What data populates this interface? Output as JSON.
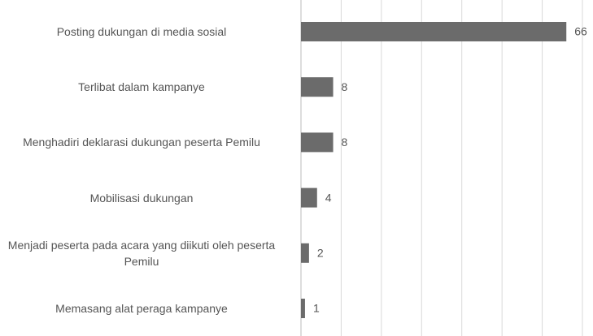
{
  "chart_data": {
    "type": "hbar",
    "categories": [
      "Posting dukungan di media sosial",
      "Terlibat dalam kampanye",
      "Menghadiri deklarasi dukungan peserta Pemilu",
      "Mobilisasi dukungan",
      "Menjadi peserta pada acara yang diikuti oleh peserta Pemilu",
      "Memasang alat peraga kampanye"
    ],
    "values": [
      66,
      8,
      8,
      4,
      2,
      1
    ],
    "color": "#6b6b6b",
    "xlim": [
      0,
      70
    ],
    "xticks": [
      0,
      10,
      20,
      30,
      40,
      50,
      60,
      70
    ],
    "grid": true
  }
}
